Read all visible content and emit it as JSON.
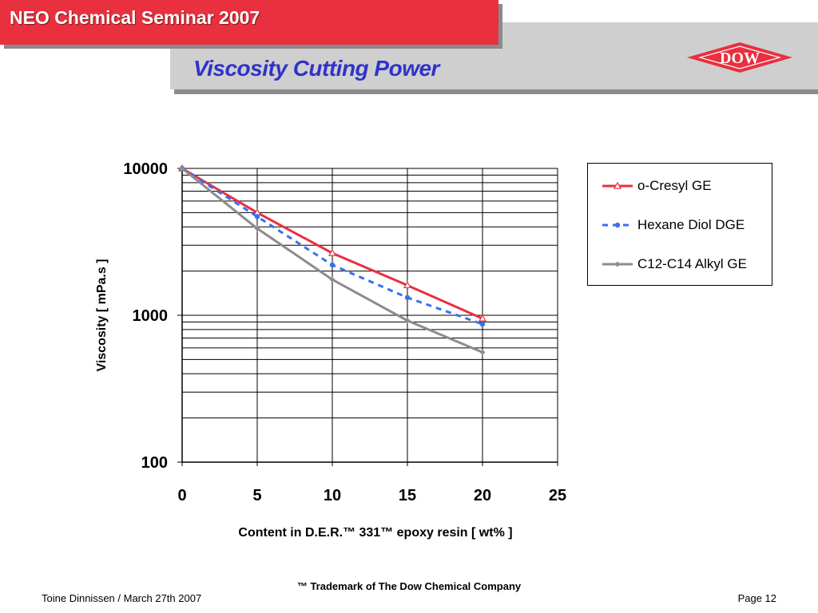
{
  "header": {
    "seminar_title": "NEO Chemical Seminar 2007",
    "slide_title": "Viscosity Cutting Power",
    "logo_text": "DOW",
    "brand_red": "#e8303f",
    "title_blue": "#2f33c8"
  },
  "chart_data": {
    "type": "line",
    "title": "",
    "xlabel": "Content in D.E.R.™ 331™ epoxy resin [ wt% ]",
    "ylabel": "Viscosity [ mPa.s ]",
    "xlim": [
      0,
      25
    ],
    "ylim": [
      100,
      10000
    ],
    "y_scale": "log",
    "x_ticks": [
      0,
      5,
      10,
      15,
      20,
      25
    ],
    "y_ticks": [
      100,
      1000,
      10000
    ],
    "grid": true,
    "legend_position": "right",
    "series": [
      {
        "name": "o-Cresyl GE",
        "color": "#e8303f",
        "style": "solid",
        "marker": "triangle",
        "x": [
          0,
          5,
          10,
          15,
          20
        ],
        "y": [
          10000,
          5000,
          2650,
          1600,
          950
        ]
      },
      {
        "name": "Hexane Diol DGE",
        "color": "#3a6ff0",
        "style": "dashed",
        "marker": "circle",
        "x": [
          0,
          5,
          10,
          15,
          20
        ],
        "y": [
          10000,
          4700,
          2200,
          1320,
          870
        ]
      },
      {
        "name": "C12-C14 Alkyl GE",
        "color": "#8c8c8c",
        "style": "solid",
        "marker": "diamond",
        "x": [
          0,
          5,
          10,
          15,
          20
        ],
        "y": [
          10000,
          3900,
          1750,
          920,
          560
        ]
      }
    ]
  },
  "footer": {
    "trademark": "™ Trademark of The Dow Chemical Company",
    "author_date": "Toine Dinnissen / March 27th 2007",
    "page": "Page 12"
  }
}
